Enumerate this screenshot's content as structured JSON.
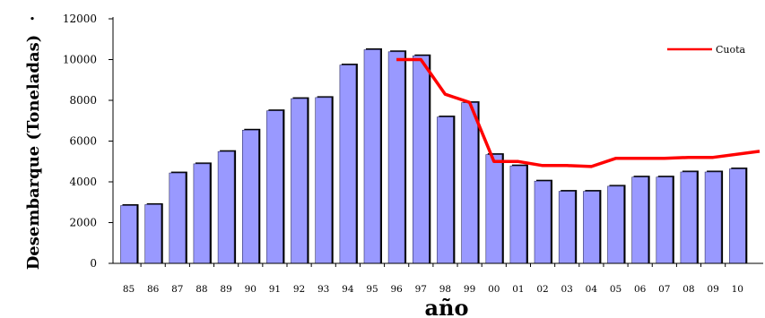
{
  "chart_data": {
    "type": "bar",
    "title": "",
    "xlabel": "año",
    "ylabel": "Desembarque (Toneladas)",
    "ylim": [
      0,
      12000
    ],
    "yticks": [
      0,
      2000,
      4000,
      6000,
      8000,
      10000,
      12000
    ],
    "categories": [
      "85",
      "86",
      "87",
      "88",
      "89",
      "90",
      "91",
      "92",
      "93",
      "94",
      "95",
      "96",
      "97",
      "98",
      "99",
      "00",
      "01",
      "02",
      "03",
      "04",
      "05",
      "06",
      "07",
      "08",
      "09",
      "10"
    ],
    "series": [
      {
        "name": "",
        "type": "bar",
        "color": "#9999ff",
        "values": [
          2900,
          2950,
          4500,
          4950,
          5550,
          6600,
          7550,
          8150,
          8200,
          9800,
          10550,
          10450,
          10250,
          7250,
          7950,
          5400,
          4850,
          4100,
          3600,
          3600,
          3850,
          4300,
          4300,
          4550,
          4550,
          4700
        ]
      },
      {
        "name": "Cuota",
        "type": "line",
        "color": "#ff0000",
        "x": [
          "96",
          "97",
          "98",
          "99",
          "00",
          "01",
          "02",
          "03",
          "04",
          "05",
          "06",
          "07",
          "08",
          "09",
          "10"
        ],
        "values": [
          10000,
          10000,
          8300,
          7900,
          5000,
          5000,
          4800,
          4800,
          4750,
          5150,
          5150,
          5150,
          5200,
          5200,
          5500
        ]
      }
    ],
    "legend": {
      "position": "top-right",
      "entries": [
        "Cuota"
      ]
    },
    "grid": false,
    "stray_mark": "."
  }
}
